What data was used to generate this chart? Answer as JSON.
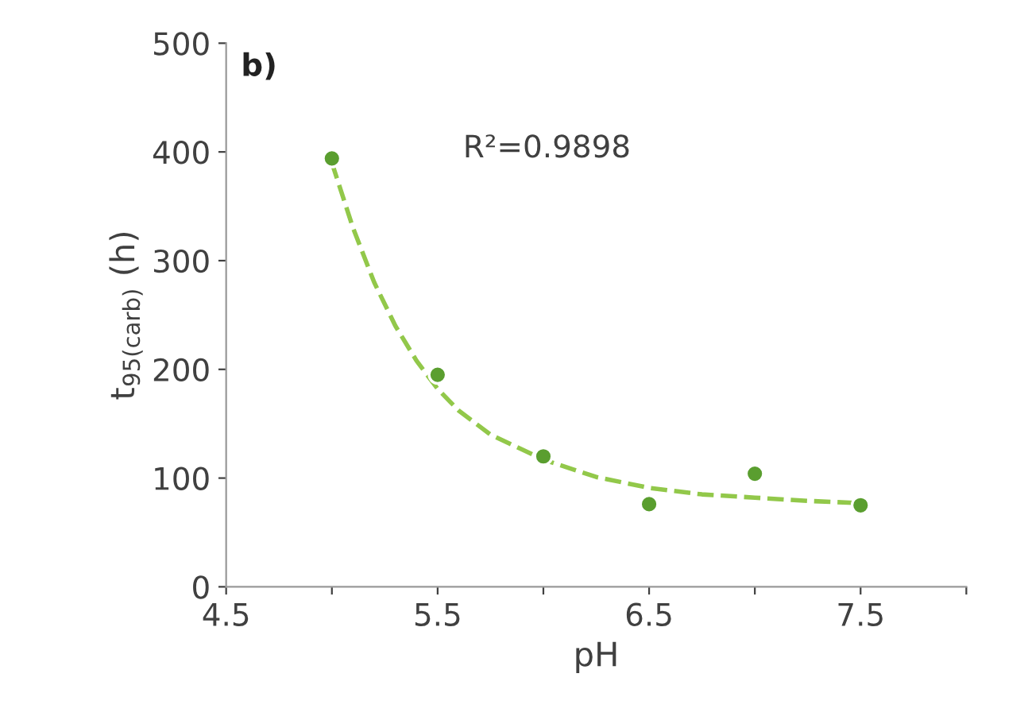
{
  "chart_data": {
    "type": "scatter",
    "xlabel": "pH",
    "ylabel": "t$_{95(carb)}$ (h)",
    "annotations": [
      "b)",
      "R²=0.9898"
    ],
    "xlim": [
      4.5,
      8.0
    ],
    "xticks": [
      4.5,
      {
        "value": 5.0,
        "label": null
      },
      5.5,
      {
        "value": 6.0,
        "label": null
      },
      6.5,
      {
        "value": 7.0,
        "label": null
      },
      7.5,
      {
        "value": 8.0,
        "label": null
      }
    ],
    "ylim": [
      0,
      500
    ],
    "yticks": [
      0,
      100,
      200,
      300,
      400,
      500
    ],
    "grid": false,
    "legend": false,
    "series": [
      {
        "type": "line",
        "color": "#92c84a",
        "line_style": "dashed",
        "marker": "none",
        "x": [
          5.0,
          5.1,
          5.2,
          5.3,
          5.4,
          5.5,
          5.6,
          5.75,
          6.0,
          6.25,
          6.5,
          6.75,
          7.0,
          7.25,
          7.5
        ],
        "values": [
          390,
          330,
          280,
          240,
          208,
          182,
          162,
          140,
          117,
          101,
          91,
          85,
          82,
          79,
          77
        ]
      },
      {
        "color": "#5a9e2f",
        "marker": "circle",
        "x": [
          5.0,
          5.5,
          6.0,
          6.5,
          7.0,
          7.5
        ],
        "values": [
          394,
          195,
          120,
          76,
          104,
          75
        ]
      }
    ]
  }
}
